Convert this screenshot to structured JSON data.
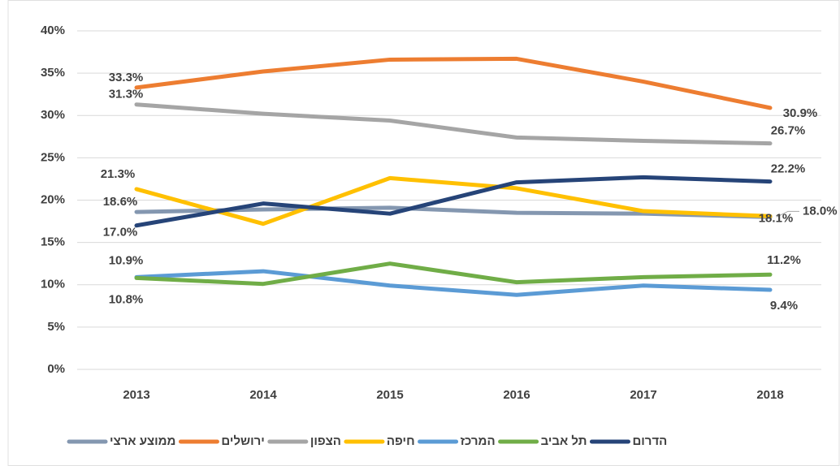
{
  "chart_data": {
    "type": "line",
    "categories": [
      "2013",
      "2014",
      "2015",
      "2016",
      "2017",
      "2018"
    ],
    "ylim": [
      0,
      40
    ],
    "yticks": [
      {
        "value": 0,
        "label": "0%"
      },
      {
        "value": 5,
        "label": "5%"
      },
      {
        "value": 10,
        "label": "10%"
      },
      {
        "value": 15,
        "label": "15%"
      },
      {
        "value": 20,
        "label": "20%"
      },
      {
        "value": 25,
        "label": "25%"
      },
      {
        "value": 30,
        "label": "30%"
      },
      {
        "value": 35,
        "label": "35%"
      },
      {
        "value": 40,
        "label": "40%"
      }
    ],
    "grid": true,
    "legend": "bottom",
    "series": [
      {
        "name": "ממוצע ארצי",
        "color": "#8497b0",
        "values": [
          18.6,
          18.9,
          19.1,
          18.5,
          18.4,
          18.0
        ],
        "value_labels": [
          "18.6%",
          null,
          null,
          null,
          null,
          "18.0%"
        ]
      },
      {
        "name": "ירושלים",
        "color": "#ed7d31",
        "values": [
          33.3,
          35.2,
          36.6,
          36.7,
          34.0,
          30.9
        ],
        "value_labels": [
          "33.3%",
          null,
          null,
          null,
          null,
          "30.9%"
        ]
      },
      {
        "name": "הצפון",
        "color": "#a5a5a5",
        "values": [
          31.3,
          30.2,
          29.4,
          27.4,
          27.0,
          26.7
        ],
        "value_labels": [
          "31.3%",
          null,
          null,
          null,
          null,
          "26.7%"
        ]
      },
      {
        "name": "חיפה",
        "color": "#ffc000",
        "values": [
          21.3,
          17.2,
          22.6,
          21.4,
          18.7,
          18.1
        ],
        "value_labels": [
          "21.3%",
          null,
          null,
          null,
          null,
          "18.1%"
        ]
      },
      {
        "name": "המרכז",
        "color": "#5b9bd5",
        "values": [
          10.9,
          11.6,
          9.9,
          8.8,
          9.9,
          9.4
        ],
        "value_labels": [
          "10.9%",
          null,
          null,
          null,
          null,
          "9.4%"
        ]
      },
      {
        "name": "תל אביב",
        "color": "#70ad47",
        "values": [
          10.8,
          10.1,
          12.5,
          10.3,
          10.9,
          11.2
        ],
        "value_labels": [
          "10.8%",
          null,
          null,
          null,
          null,
          "11.2%"
        ]
      },
      {
        "name": "הדרום",
        "color": "#264478",
        "values": [
          17.0,
          19.6,
          18.4,
          22.1,
          22.7,
          22.2
        ],
        "value_labels": [
          "17.0%",
          null,
          null,
          null,
          null,
          "22.2%"
        ]
      }
    ]
  }
}
